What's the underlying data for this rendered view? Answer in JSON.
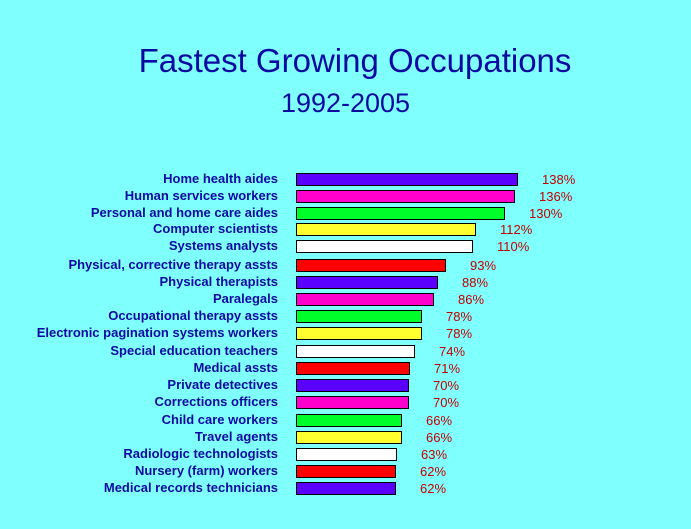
{
  "chart_data": {
    "type": "bar",
    "orientation": "horizontal",
    "title": "Fastest Growing Occupations",
    "subtitle": "1992-2005",
    "xlabel": "",
    "ylabel": "",
    "grid": false,
    "legend": null,
    "categories": [
      "Home health aides",
      "Human services workers",
      "Personal and home care aides",
      "Computer scientists",
      "Systems analysts",
      "Physical, corrective therapy assts",
      "Physical therapists",
      "Paralegals",
      "Occupational therapy assts",
      "Electronic pagination systems workers",
      "Special education teachers",
      "Medical assts",
      "Private detectives",
      "Corrections officers",
      "Child care workers",
      "Travel agents",
      "Radiologic technologists",
      "Nursery (farm) workers",
      "Medical records technicians"
    ],
    "values": [
      138,
      136,
      130,
      112,
      110,
      93,
      88,
      86,
      78,
      78,
      74,
      71,
      70,
      70,
      66,
      66,
      63,
      62,
      62
    ],
    "value_labels": [
      "138%",
      "136%",
      "130%",
      "112%",
      "110%",
      "93%",
      "88%",
      "86%",
      "78%",
      "78%",
      "74%",
      "71%",
      "70%",
      "70%",
      "66%",
      "66%",
      "63%",
      "62%",
      "62%"
    ],
    "bar_colors": [
      "#5A00FF",
      "#FF00CC",
      "#00FF2A",
      "#FFFF30",
      "#FFFFFF",
      "#FF0000",
      "#5A00FF",
      "#FF00CC",
      "#00FF2A",
      "#FFFF30",
      "#FFFFFF",
      "#FF0000",
      "#5A00FF",
      "#FF00CC",
      "#00FF2A",
      "#FFFF30",
      "#FFFFFF",
      "#FF0000",
      "#5A00FF"
    ],
    "units": "%"
  },
  "colors": {
    "background": "#80FFFF",
    "title": "#0A0AA0",
    "label": "#0A0AA0",
    "value": "#C00000"
  }
}
